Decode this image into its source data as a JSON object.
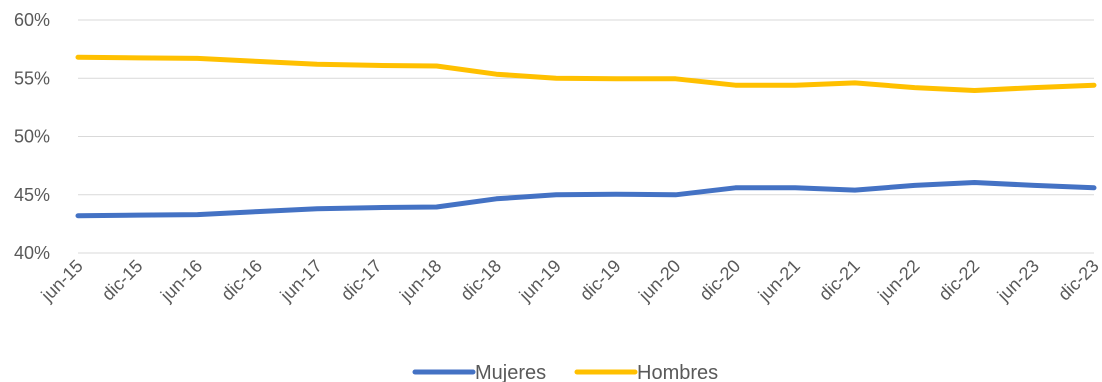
{
  "chart_data": {
    "type": "line",
    "categories": [
      "jun-15",
      "dic-15",
      "jun-16",
      "dic-16",
      "jun-17",
      "dic-17",
      "jun-18",
      "dic-18",
      "jun-19",
      "dic-19",
      "jun-20",
      "dic-20",
      "jun-21",
      "dic-21",
      "jun-22",
      "dic-22",
      "jun-23",
      "dic-23"
    ],
    "series": [
      {
        "name": "Mujeres",
        "color": "#4472C4",
        "values": [
          43.2,
          43.25,
          43.3,
          43.55,
          43.8,
          43.9,
          43.95,
          44.65,
          45.0,
          45.05,
          45.0,
          45.6,
          45.6,
          45.4,
          45.8,
          46.05,
          45.8,
          45.6
        ]
      },
      {
        "name": "Hombres",
        "color": "#FFC000",
        "values": [
          56.8,
          56.75,
          56.7,
          56.45,
          56.2,
          56.1,
          56.05,
          55.35,
          55.0,
          54.95,
          54.95,
          54.4,
          54.4,
          54.6,
          54.2,
          53.95,
          54.2,
          54.4
        ]
      }
    ],
    "ylim": [
      40,
      60
    ],
    "yticks": [
      40,
      45,
      50,
      55,
      60
    ],
    "ytick_labels": [
      "40%",
      "45%",
      "50%",
      "55%",
      "60%"
    ],
    "grid": true,
    "legend_position": "bottom",
    "title": "",
    "xlabel": "",
    "ylabel": ""
  }
}
